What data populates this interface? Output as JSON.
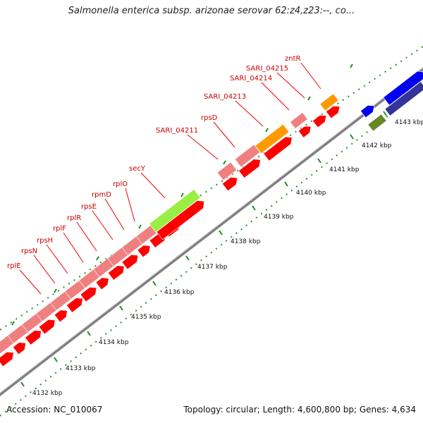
{
  "title": "Salmonella enterica subsp. arizonae serovar 62:z4,z23:--, co...",
  "footer": {
    "accession": "Accession: NC_010067",
    "topology": "Topology: circular; Length: 4,600,800 bp; Genes: 4,634"
  },
  "colors": {
    "gene_red": "#ff0000",
    "gene_pink": "#f08080",
    "gene_green": "#99ee44",
    "gene_orange": "#ff9900",
    "gene_blue": "#0000ee",
    "gene_navy": "#333399",
    "gene_olive": "#668822",
    "backbone": "#999999",
    "tick_green": "#228b22",
    "label_red": "#cc0000"
  },
  "scale_ticks": [
    "4132 kbp",
    "4133 kbp",
    "4134 kbp",
    "4135 kbp",
    "4136 kbp",
    "4137 kbp",
    "4138 kbp",
    "4139 kbp",
    "4140 kbp",
    "4141 kbp",
    "4142 kbp",
    "4143 kbp"
  ],
  "gene_labels": [
    "rplE",
    "rpsN",
    "rpsH",
    "rplF",
    "rplR",
    "rpsE",
    "rpmD",
    "rplO",
    "secY",
    "SARI_04211",
    "rpsD",
    "SARI_04213",
    "SARI_04214",
    "SARI_04215",
    "zntR"
  ]
}
